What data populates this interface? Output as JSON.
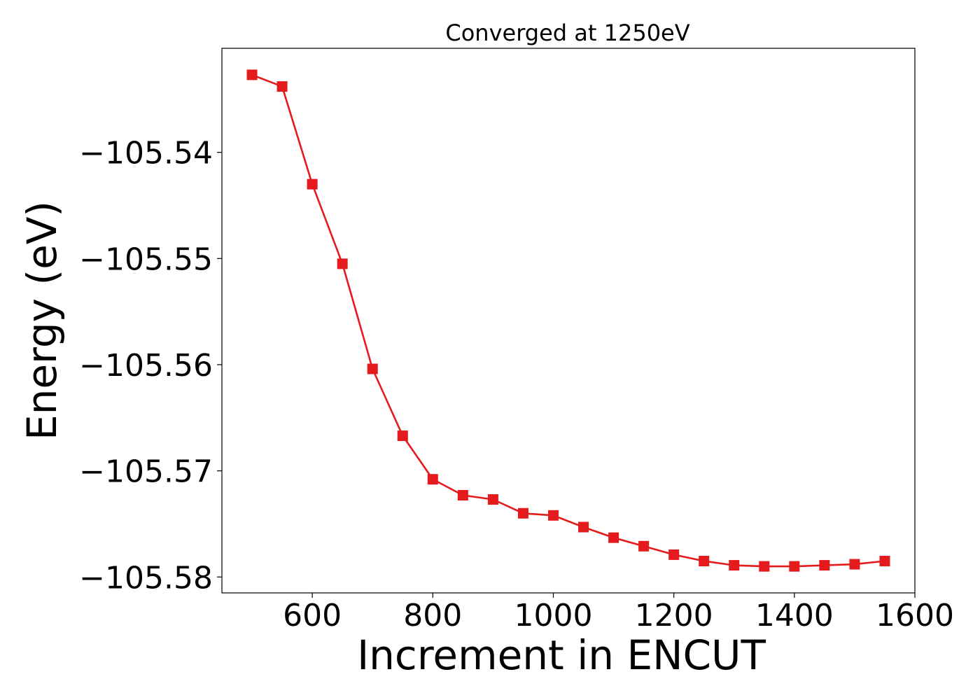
{
  "chart_data": {
    "type": "line",
    "title": "Converged at 1250eV",
    "xlabel": "Increment in ENCUT",
    "ylabel": "Energy (eV)",
    "xlim": [
      450,
      1600
    ],
    "ylim": [
      -105.5815,
      -105.5302
    ],
    "xticks": [
      600,
      800,
      1000,
      1200,
      1400,
      1600
    ],
    "xtick_labels": [
      "600",
      "800",
      "1000",
      "1200",
      "1400",
      "1600"
    ],
    "yticks": [
      -105.54,
      -105.55,
      -105.56,
      -105.57,
      -105.58
    ],
    "ytick_labels": [
      "−105.54",
      "−105.55",
      "−105.56",
      "−105.57",
      "−105.58"
    ],
    "grid": false,
    "series": [
      {
        "color": "#e41a1c",
        "marker": "square",
        "x": [
          500,
          550,
          600,
          650,
          700,
          750,
          800,
          850,
          900,
          950,
          1000,
          1050,
          1100,
          1150,
          1200,
          1250,
          1300,
          1350,
          1400,
          1450,
          1500,
          1550
        ],
        "y": [
          -105.5327,
          -105.5338,
          -105.543,
          -105.5505,
          -105.5604,
          -105.5667,
          -105.5708,
          -105.5723,
          -105.5727,
          -105.574,
          -105.5742,
          -105.5753,
          -105.5763,
          -105.5771,
          -105.5779,
          -105.5785,
          -105.5789,
          -105.579,
          -105.579,
          -105.5789,
          -105.5788,
          -105.5785
        ]
      }
    ]
  }
}
